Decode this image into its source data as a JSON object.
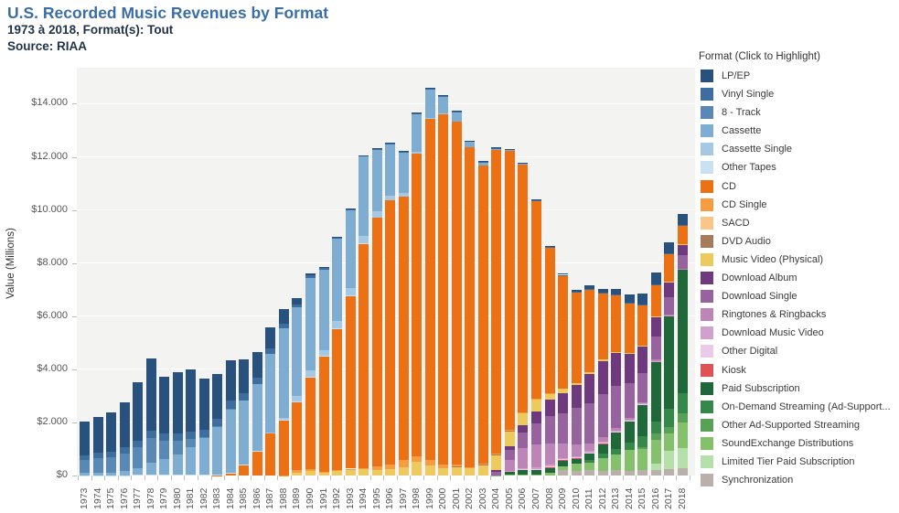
{
  "header": {
    "title": "U.S. Recorded Music Revenues by Format",
    "subtitle": "1973 à 2018, Format(s): Tout",
    "source": "Source: RIAA"
  },
  "y_axis": {
    "label": "Value (Millions)",
    "ticks": [
      {
        "value": 0,
        "label": "$0"
      },
      {
        "value": 2000,
        "label": "$2.000"
      },
      {
        "value": 4000,
        "label": "$4.000"
      },
      {
        "value": 6000,
        "label": "$6.000"
      },
      {
        "value": 8000,
        "label": "$8.000"
      },
      {
        "value": 10000,
        "label": "$10.000"
      },
      {
        "value": 12000,
        "label": "$12.000"
      },
      {
        "value": 14000,
        "label": "$14.000"
      }
    ]
  },
  "legend": {
    "title": "Format (Click to Highlight)",
    "labels": [
      "LP/EP",
      "Vinyl Single",
      "8 - Track",
      "Cassette",
      "Cassette Single",
      "Other Tapes",
      "CD",
      "CD Single",
      "SACD",
      "DVD Audio",
      "Music Video (Physical)",
      "Download Album",
      "Download Single",
      "Ringtones & Ringbacks",
      "Download Music Video",
      "Other Digital",
      "Kiosk",
      "Paid Subscription",
      "On-Demand Streaming (Ad-Support...",
      "Other Ad-Supported Streaming",
      "SoundExchange Distributions",
      "Limited Tier Paid Subscription",
      "Synchronization"
    ]
  },
  "chart_data": {
    "type": "bar",
    "stacked": true,
    "stack_note": "first series drawn on top of each bar; stacking bottom-to-top follows reverse series order",
    "title": "U.S. Recorded Music Revenues by Format",
    "xlabel": "",
    "ylabel": "Value (Millions)",
    "ylim": [
      0,
      15400
    ],
    "grid": true,
    "legend_position": "right",
    "plot_background": "#f3f3f2",
    "categories": [
      "1973",
      "1974",
      "1975",
      "1976",
      "1977",
      "1978",
      "1979",
      "1980",
      "1981",
      "1982",
      "1983",
      "1984",
      "1985",
      "1986",
      "1987",
      "1988",
      "1989",
      "1990",
      "1991",
      "1992",
      "1993",
      "1994",
      "1995",
      "1996",
      "1997",
      "1998",
      "1999",
      "2000",
      "2001",
      "2002",
      "2003",
      "2004",
      "2005",
      "2006",
      "2007",
      "2008",
      "2009",
      "2010",
      "2011",
      "2012",
      "2013",
      "2014",
      "2015",
      "2016",
      "2017",
      "2018"
    ],
    "series": [
      {
        "name": "LP/EP",
        "color": "#29517e",
        "values": [
          1246,
          1356,
          1485,
          1663,
          2195,
          2733,
          2136,
          2290,
          2342,
          1925,
          1689,
          1549,
          1281,
          983,
          793,
          532,
          220,
          87,
          29,
          14,
          11,
          18,
          25,
          37,
          33,
          34,
          32,
          28,
          27,
          21,
          22,
          19,
          14,
          16,
          23,
          57,
          66,
          89,
          120,
          163,
          216,
          315,
          415,
          430,
          389,
          419
        ]
      },
      {
        "name": "Vinyl Single",
        "color": "#3e6e9f",
        "values": [
          190,
          194,
          212,
          245,
          245,
          260,
          275,
          269,
          256,
          283,
          269,
          299,
          281,
          228,
          203,
          180,
          116,
          94,
          64,
          66,
          51,
          47,
          47,
          48,
          36,
          26,
          28,
          26,
          31,
          25,
          22,
          20,
          26,
          23,
          23,
          29,
          25,
          28,
          32,
          32,
          29,
          26,
          29,
          28,
          26,
          30
        ]
      },
      {
        "name": "8 - Track",
        "color": "#5a88b4",
        "values": [
          489,
          549,
          583,
          678,
          811,
          948,
          669,
          526,
          309,
          49,
          28,
          6,
          0,
          0,
          0,
          0,
          0,
          0,
          0,
          0,
          0,
          0,
          0,
          0,
          0,
          0,
          0,
          0,
          0,
          0,
          0,
          0,
          0,
          0,
          0,
          0,
          0,
          0,
          0,
          0,
          0,
          0,
          0,
          0,
          0,
          0
        ]
      },
      {
        "name": "Cassette",
        "color": "#7fadd1",
        "values": [
          76,
          87,
          99,
          146,
          250,
          450,
          605,
          776,
          1063,
          1385,
          1811,
          2384,
          2412,
          2500,
          2960,
          3385,
          3346,
          3472,
          3020,
          3116,
          2916,
          2976,
          2304,
          1905,
          1523,
          1420,
          1062,
          626,
          363,
          210,
          108,
          24,
          13,
          4,
          3,
          1,
          0,
          0,
          0,
          0,
          0,
          0,
          0,
          0,
          0,
          0
        ]
      },
      {
        "name": "Cassette Single",
        "color": "#a5c9e4",
        "values": [
          0,
          0,
          0,
          0,
          0,
          0,
          0,
          0,
          0,
          0,
          0,
          0,
          0,
          0,
          14,
          57,
          195,
          258,
          230,
          273,
          299,
          275,
          236,
          189,
          134,
          62,
          48,
          5,
          1,
          0,
          0,
          0,
          0,
          0,
          0,
          0,
          0,
          0,
          0,
          0,
          0,
          0,
          0,
          0,
          0,
          0
        ]
      },
      {
        "name": "Other Tapes",
        "color": "#c9e1f1",
        "values": [
          15,
          16,
          15,
          16,
          18,
          20,
          21,
          22,
          20,
          19,
          17,
          16,
          15,
          13,
          11,
          10,
          8,
          7,
          5,
          4,
          4,
          3,
          2,
          2,
          2,
          1,
          1,
          1,
          0,
          0,
          0,
          0,
          0,
          0,
          0,
          0,
          0,
          0,
          0,
          0,
          0,
          0,
          0,
          0,
          0,
          0
        ]
      },
      {
        "name": "CD",
        "color": "#ec7014",
        "values": [
          0,
          0,
          0,
          0,
          0,
          0,
          0,
          0,
          0,
          0,
          17,
          103,
          390,
          930,
          1594,
          2090,
          2588,
          3452,
          4338,
          5327,
          6511,
          8465,
          9377,
          9935,
          9915,
          11416,
          12816,
          13215,
          12909,
          12044,
          11233,
          11447,
          10520,
          9373,
          7452,
          5471,
          4273,
          3389,
          3101,
          2486,
          2125,
          1855,
          1522,
          1175,
          1062,
          698
        ]
      },
      {
        "name": "CD Single",
        "color": "#f59d40",
        "values": [
          0,
          0,
          0,
          0,
          0,
          0,
          0,
          0,
          0,
          0,
          0,
          0,
          0,
          0,
          0,
          10,
          87,
          86,
          35,
          45,
          46,
          56,
          111,
          184,
          273,
          213,
          222,
          143,
          79,
          20,
          17,
          15,
          11,
          8,
          12,
          4,
          0,
          0,
          0,
          0,
          0,
          0,
          0,
          0,
          0,
          0
        ]
      },
      {
        "name": "SACD",
        "color": "#fac687",
        "values": [
          0,
          0,
          0,
          0,
          0,
          0,
          0,
          0,
          0,
          0,
          0,
          0,
          0,
          0,
          0,
          0,
          0,
          0,
          0,
          0,
          0,
          0,
          0,
          0,
          0,
          0,
          0,
          0,
          0,
          0,
          26,
          18,
          10,
          7,
          6,
          0,
          0,
          0,
          0,
          0,
          0,
          0,
          0,
          0,
          0,
          0
        ]
      },
      {
        "name": "DVD Audio",
        "color": "#a67a5b",
        "values": [
          0,
          0,
          0,
          0,
          0,
          0,
          0,
          0,
          0,
          0,
          0,
          0,
          0,
          0,
          0,
          0,
          0,
          0,
          0,
          0,
          0,
          0,
          0,
          0,
          0,
          0,
          0,
          0,
          6,
          9,
          8,
          6,
          4,
          2,
          1,
          0,
          0,
          0,
          0,
          0,
          0,
          0,
          0,
          0,
          0,
          0
        ]
      },
      {
        "name": "Music Video (Physical)",
        "color": "#edca5e",
        "values": [
          0,
          0,
          0,
          0,
          0,
          0,
          0,
          0,
          0,
          0,
          0,
          0,
          0,
          0,
          0,
          0,
          115,
          172,
          118,
          157,
          213,
          231,
          220,
          236,
          324,
          508,
          377,
          282,
          329,
          288,
          400,
          607,
          602,
          451,
          485,
          222,
          162,
          80,
          86,
          63,
          47,
          35,
          24,
          21,
          14,
          11
        ]
      },
      {
        "name": "Download Album",
        "color": "#6f3a7d",
        "values": [
          0,
          0,
          0,
          0,
          0,
          0,
          0,
          0,
          0,
          0,
          0,
          0,
          0,
          0,
          0,
          0,
          0,
          0,
          0,
          0,
          0,
          0,
          0,
          0,
          0,
          0,
          0,
          0,
          0,
          0,
          0,
          46,
          136,
          276,
          425,
          635,
          748,
          872,
          1087,
          1229,
          1232,
          1121,
          990,
          744,
          563,
          400
        ]
      },
      {
        "name": "Download Single",
        "color": "#97639e",
        "values": [
          0,
          0,
          0,
          0,
          0,
          0,
          0,
          0,
          0,
          0,
          0,
          0,
          0,
          0,
          0,
          0,
          0,
          0,
          0,
          0,
          0,
          0,
          0,
          0,
          0,
          0,
          0,
          0,
          0,
          0,
          0,
          139,
          363,
          581,
          795,
          1024,
          1160,
          1367,
          1530,
          1620,
          1573,
          1309,
          1102,
          885,
          668,
          490
        ]
      },
      {
        "name": "Ringtones & Ringbacks",
        "color": "#bd84b8",
        "values": [
          0,
          0,
          0,
          0,
          0,
          0,
          0,
          0,
          0,
          0,
          0,
          0,
          0,
          0,
          0,
          0,
          0,
          0,
          0,
          0,
          0,
          0,
          0,
          0,
          0,
          0,
          0,
          0,
          0,
          0,
          0,
          0,
          422,
          774,
          882,
          816,
          542,
          448,
          277,
          167,
          97,
          66,
          55,
          41,
          28,
          22
        ]
      },
      {
        "name": "Download Music Video",
        "color": "#d1a1cd",
        "values": [
          0,
          0,
          0,
          0,
          0,
          0,
          0,
          0,
          0,
          0,
          0,
          0,
          0,
          0,
          0,
          0,
          0,
          0,
          0,
          0,
          0,
          0,
          0,
          0,
          0,
          0,
          0,
          0,
          0,
          0,
          0,
          0,
          4,
          26,
          42,
          46,
          46,
          39,
          41,
          39,
          40,
          27,
          19,
          13,
          9,
          6
        ]
      },
      {
        "name": "Other Digital",
        "color": "#ebc9e8",
        "values": [
          0,
          0,
          0,
          0,
          0,
          0,
          0,
          0,
          0,
          0,
          0,
          0,
          0,
          0,
          0,
          0,
          0,
          0,
          0,
          0,
          0,
          0,
          0,
          0,
          0,
          0,
          0,
          0,
          0,
          0,
          0,
          0,
          0,
          11,
          15,
          26,
          34,
          27,
          24,
          21,
          18,
          12,
          9,
          7,
          6,
          5
        ]
      },
      {
        "name": "Kiosk",
        "color": "#df5356",
        "values": [
          0,
          0,
          0,
          0,
          0,
          0,
          0,
          0,
          0,
          0,
          0,
          0,
          0,
          0,
          0,
          0,
          0,
          0,
          0,
          0,
          0,
          0,
          0,
          0,
          0,
          0,
          0,
          0,
          0,
          0,
          0,
          0,
          2,
          1,
          3,
          9,
          11,
          9,
          6,
          4,
          2,
          1,
          0,
          0,
          0,
          0
        ]
      },
      {
        "name": "Paid Subscription",
        "color": "#20673a",
        "values": [
          0,
          0,
          0,
          0,
          0,
          0,
          0,
          0,
          0,
          0,
          0,
          0,
          0,
          0,
          0,
          0,
          0,
          0,
          0,
          0,
          0,
          0,
          0,
          0,
          0,
          0,
          0,
          0,
          0,
          0,
          0,
          0,
          149,
          206,
          201,
          220,
          212,
          212,
          242,
          400,
          640,
          800,
          1219,
          2259,
          3506,
          4657
        ]
      },
      {
        "name": "On-Demand Streaming (Ad-Supported)",
        "color": "#35884a",
        "values": [
          0,
          0,
          0,
          0,
          0,
          0,
          0,
          0,
          0,
          0,
          0,
          0,
          0,
          0,
          0,
          0,
          0,
          0,
          0,
          0,
          0,
          0,
          0,
          0,
          0,
          0,
          0,
          0,
          0,
          0,
          0,
          0,
          0,
          0,
          0,
          0,
          0,
          0,
          113,
          171,
          220,
          295,
          385,
          469,
          659,
          760
        ]
      },
      {
        "name": "Other Ad-Supported Streaming",
        "color": "#58a156",
        "values": [
          0,
          0,
          0,
          0,
          0,
          0,
          0,
          0,
          0,
          0,
          0,
          0,
          0,
          0,
          0,
          0,
          0,
          0,
          0,
          0,
          0,
          0,
          0,
          0,
          0,
          0,
          0,
          0,
          0,
          0,
          0,
          0,
          0,
          0,
          0,
          0,
          0,
          0,
          0,
          0,
          0,
          0,
          75,
          240,
          270,
          363
        ]
      },
      {
        "name": "SoundExchange Distributions",
        "color": "#85c16d",
        "values": [
          0,
          0,
          0,
          0,
          0,
          0,
          0,
          0,
          0,
          0,
          0,
          0,
          0,
          0,
          0,
          0,
          0,
          0,
          0,
          0,
          0,
          0,
          0,
          0,
          0,
          0,
          0,
          0,
          0,
          0,
          0,
          7,
          20,
          31,
          36,
          96,
          156,
          249,
          292,
          462,
          590,
          773,
          803,
          884,
          653,
          953
        ]
      },
      {
        "name": "Limited Tier Paid Subscription",
        "color": "#b5e0a9",
        "values": [
          0,
          0,
          0,
          0,
          0,
          0,
          0,
          0,
          0,
          0,
          0,
          0,
          0,
          0,
          0,
          0,
          0,
          0,
          0,
          0,
          0,
          0,
          0,
          0,
          0,
          0,
          0,
          0,
          0,
          0,
          0,
          0,
          0,
          0,
          0,
          0,
          0,
          0,
          0,
          0,
          0,
          0,
          0,
          234,
          683,
          747
        ]
      },
      {
        "name": "Synchronization",
        "color": "#b9b0ab",
        "values": [
          0,
          0,
          0,
          0,
          0,
          0,
          0,
          0,
          0,
          0,
          0,
          0,
          0,
          0,
          0,
          0,
          0,
          0,
          0,
          0,
          0,
          0,
          0,
          0,
          0,
          0,
          0,
          0,
          0,
          0,
          0,
          0,
          0,
          0,
          0,
          0,
          191,
          188,
          196,
          186,
          191,
          189,
          203,
          211,
          234,
          285
        ]
      }
    ]
  }
}
